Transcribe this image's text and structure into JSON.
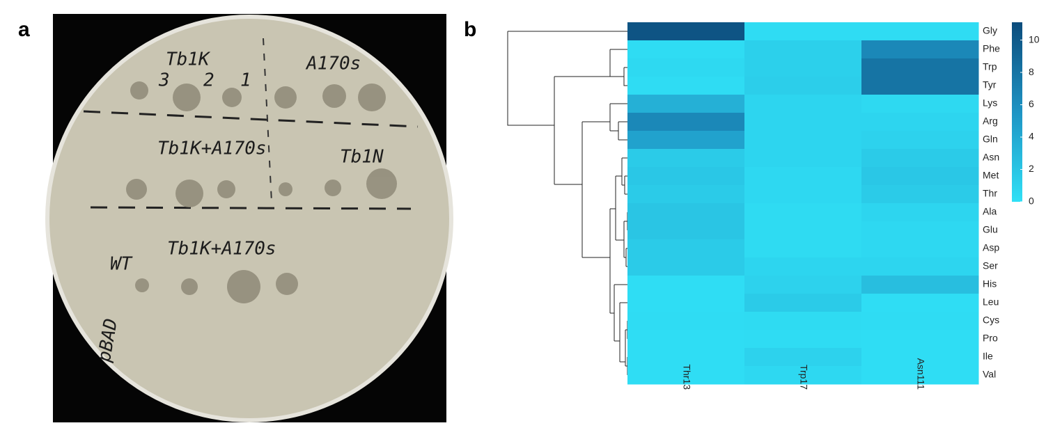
{
  "panel_labels": [
    "a",
    "b"
  ],
  "photo_labels": [
    "Tb1K",
    "A170s",
    "3",
    "2",
    "1",
    "Tb1K+A170s",
    "Tb1N",
    "WT",
    "pBAD"
  ],
  "chart_data": {
    "type": "heatmap",
    "rows": [
      "Gly",
      "Phe",
      "Trp",
      "Tyr",
      "Lys",
      "Arg",
      "Gln",
      "Asn",
      "Met",
      "Thr",
      "Ala",
      "Glu",
      "Asp",
      "Ser",
      "His",
      "Leu",
      "Cys",
      "Pro",
      "Ile",
      "Val"
    ],
    "columns": [
      "Thr13",
      "Trp17",
      "Asn111"
    ],
    "values": [
      [
        10.5,
        0.3,
        0.3
      ],
      [
        0.3,
        1.2,
        6.5
      ],
      [
        0.5,
        1.2,
        8
      ],
      [
        0.3,
        1.3,
        8
      ],
      [
        3.5,
        0.8,
        0.5
      ],
      [
        6.5,
        0.8,
        0.8
      ],
      [
        4.5,
        0.8,
        1.0
      ],
      [
        1.5,
        0.8,
        1.5
      ],
      [
        1.8,
        0.6,
        1.8
      ],
      [
        1.5,
        0.6,
        1.5
      ],
      [
        2.0,
        0.4,
        0.8
      ],
      [
        2.0,
        0.4,
        0.6
      ],
      [
        1.5,
        0.4,
        0.6
      ],
      [
        1.5,
        0.8,
        0.8
      ],
      [
        0.2,
        1.0,
        2.5
      ],
      [
        0.2,
        1.5,
        0.2
      ],
      [
        0.3,
        0.4,
        0.3
      ],
      [
        0.2,
        0.3,
        0.2
      ],
      [
        0.2,
        1.0,
        0.2
      ],
      [
        0.2,
        0.6,
        0.2
      ]
    ],
    "colors": [
      "#30e0f6",
      "#1e94c4",
      "#0c4c7c"
    ],
    "zlim": [
      0,
      11.1
    ],
    "zticks": [
      0,
      2,
      4,
      6,
      8,
      10
    ]
  }
}
